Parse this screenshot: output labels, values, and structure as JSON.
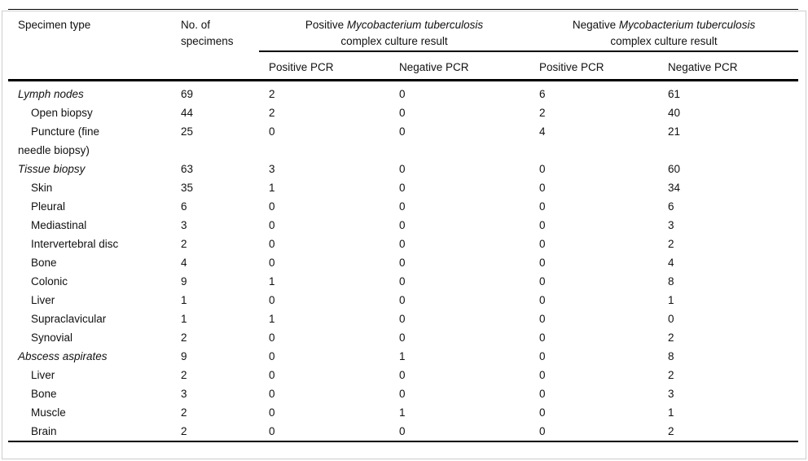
{
  "colors": {
    "rule": "#000000",
    "frame": "#cccccc",
    "background": "#ffffff",
    "text": "#111111"
  },
  "table": {
    "header": {
      "specimen_type": "Specimen type",
      "no_of_specimens": "No. of\nspecimens",
      "groups": [
        {
          "prefix": "Positive ",
          "italic": "Mycobacterium tuberculosis",
          "line2": "complex culture result"
        },
        {
          "prefix": "Negative ",
          "italic": "Mycobacterium tuberculosis",
          "line2": "complex culture result"
        }
      ],
      "subheaders": [
        "Positive PCR",
        "Negative PCR",
        "Positive PCR",
        "Negative PCR"
      ]
    },
    "rows": [
      {
        "label": "Lymph nodes",
        "style": "category",
        "values": [
          "69",
          "2",
          "0",
          "6",
          "61"
        ]
      },
      {
        "label": "Open biopsy",
        "style": "sub",
        "values": [
          "44",
          "2",
          "0",
          "2",
          "40"
        ]
      },
      {
        "label": "Puncture (fine\nneedle biopsy)",
        "style": "sub",
        "values": [
          "25",
          "0",
          "0",
          "4",
          "21"
        ]
      },
      {
        "label": "Tissue biopsy",
        "style": "category",
        "values": [
          "63",
          "3",
          "0",
          "0",
          "60"
        ]
      },
      {
        "label": "Skin",
        "style": "sub",
        "values": [
          "35",
          "1",
          "0",
          "0",
          "34"
        ]
      },
      {
        "label": "Pleural",
        "style": "sub",
        "values": [
          "6",
          "0",
          "0",
          "0",
          "6"
        ]
      },
      {
        "label": "Mediastinal",
        "style": "sub",
        "values": [
          "3",
          "0",
          "0",
          "0",
          "3"
        ]
      },
      {
        "label": "Intervertebral disc",
        "style": "sub",
        "values": [
          "2",
          "0",
          "0",
          "0",
          "2"
        ]
      },
      {
        "label": "Bone",
        "style": "sub",
        "values": [
          "4",
          "0",
          "0",
          "0",
          "4"
        ]
      },
      {
        "label": "Colonic",
        "style": "sub",
        "values": [
          "9",
          "1",
          "0",
          "0",
          "8"
        ]
      },
      {
        "label": "Liver",
        "style": "sub",
        "values": [
          "1",
          "0",
          "0",
          "0",
          "1"
        ]
      },
      {
        "label": "Supraclavicular",
        "style": "sub",
        "values": [
          "1",
          "1",
          "0",
          "0",
          "0"
        ]
      },
      {
        "label": "Synovial",
        "style": "sub",
        "values": [
          "2",
          "0",
          "0",
          "0",
          "2"
        ]
      },
      {
        "label": "Abscess aspirates",
        "style": "category",
        "values": [
          "9",
          "0",
          "1",
          "0",
          "8"
        ]
      },
      {
        "label": "Liver",
        "style": "sub",
        "values": [
          "2",
          "0",
          "0",
          "0",
          "2"
        ]
      },
      {
        "label": "Bone",
        "style": "sub",
        "values": [
          "3",
          "0",
          "0",
          "0",
          "3"
        ]
      },
      {
        "label": "Muscle",
        "style": "sub",
        "values": [
          "2",
          "0",
          "1",
          "0",
          "1"
        ]
      },
      {
        "label": "Brain",
        "style": "sub",
        "values": [
          "2",
          "0",
          "0",
          "0",
          "2"
        ]
      }
    ]
  }
}
